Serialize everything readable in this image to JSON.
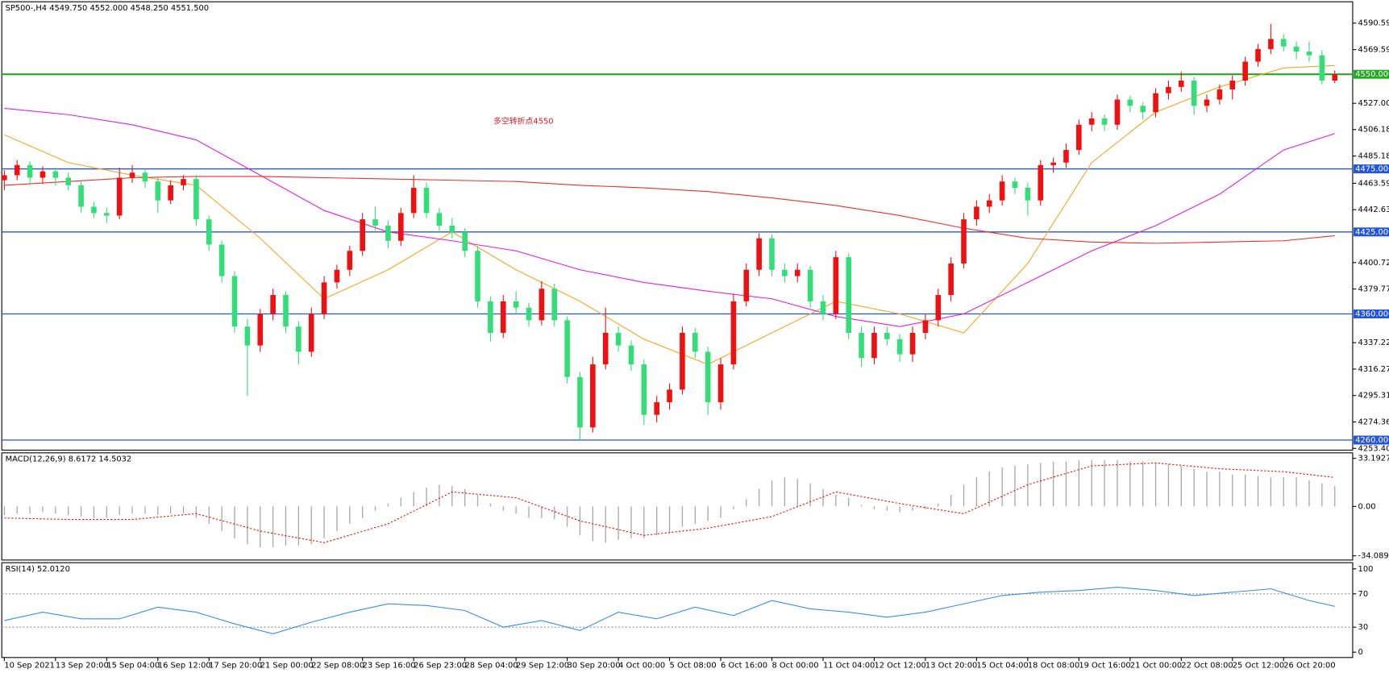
{
  "chart_data": [
    {
      "type": "candlestick",
      "title": "SP500-,H4  4549.750 4552.000 4548.250 4551.500",
      "annotation": "多空转折点4550",
      "annotation_color": "#e0141e",
      "up_color": "#f01010",
      "down_color": "#33dd77",
      "xlim": [
        -0.2,
        105.4
      ],
      "ylim": [
        4252,
        4607.5
      ],
      "yticks": [
        {
          "value": 4590.59,
          "label": "4590.590"
        },
        {
          "value": 4569.59,
          "label": "4569.590"
        },
        {
          "value": 4527,
          "label": "4527.000"
        },
        {
          "value": 4506.18,
          "label": "4506.180"
        },
        {
          "value": 4485.18,
          "label": "4485.180"
        },
        {
          "value": 4463.59,
          "label": "4463.590"
        },
        {
          "value": 4442.635,
          "label": "4442.635"
        },
        {
          "value": 4400.725,
          "label": "4400.725"
        },
        {
          "value": 4379.77,
          "label": "4379.770"
        },
        {
          "value": 4337.225,
          "label": "4337.225"
        },
        {
          "value": 4316.27,
          "label": "4316.270"
        },
        {
          "value": 4295.315,
          "label": "4295.315"
        },
        {
          "value": 4274.36,
          "label": "4274.360"
        },
        {
          "value": 4253.405,
          "label": "4253.405"
        }
      ],
      "levels": [
        {
          "value": 4550,
          "label": "4550.000",
          "color": "#22aa22"
        },
        {
          "value": 4475,
          "label": "4475.000",
          "color": "#2255dd"
        },
        {
          "value": 4425,
          "label": "4425.000",
          "color": "#2255dd"
        },
        {
          "value": 4360,
          "label": "4360.000",
          "color": "#2255dd"
        },
        {
          "value": 4260,
          "label": "4260.000",
          "color": "#2255dd"
        }
      ],
      "lines": [
        {
          "color": "#f5a623",
          "x": [
            0,
            5,
            10,
            15,
            20,
            25,
            30,
            35,
            40,
            45,
            50,
            55,
            60,
            65,
            70,
            75,
            80,
            85,
            90,
            95,
            100,
            104
          ],
          "values": [
            4502,
            4480,
            4470,
            4462,
            4420,
            4372,
            4395,
            4425,
            4395,
            4370,
            4340,
            4320,
            4345,
            4370,
            4360,
            4345,
            4400,
            4480,
            4520,
            4540,
            4555,
            4557
          ]
        },
        {
          "color": "#e020e0",
          "x": [
            0,
            5,
            10,
            15,
            20,
            25,
            30,
            35,
            40,
            45,
            50,
            55,
            60,
            65,
            70,
            75,
            80,
            85,
            90,
            95,
            100,
            104
          ],
          "values": [
            4523,
            4518,
            4510,
            4498,
            4470,
            4442,
            4425,
            4418,
            4410,
            4395,
            4385,
            4378,
            4372,
            4358,
            4350,
            4360,
            4385,
            4410,
            4430,
            4455,
            4490,
            4503
          ]
        },
        {
          "color": "#e8302a",
          "x": [
            0,
            5,
            10,
            15,
            20,
            25,
            30,
            35,
            40,
            45,
            50,
            55,
            60,
            65,
            70,
            75,
            80,
            85,
            90,
            95,
            100,
            104
          ],
          "values": [
            4462,
            4465,
            4468,
            4469,
            4469,
            4468,
            4467,
            4466,
            4465,
            4462,
            4460,
            4457,
            4452,
            4446,
            4438,
            4428,
            4420,
            4417,
            4416,
            4417,
            4418,
            4422
          ]
        }
      ],
      "candles": [
        [
          4466,
          4474,
          4458,
          4470
        ],
        [
          4470,
          4482,
          4466,
          4478
        ],
        [
          4478,
          4481,
          4462,
          4468
        ],
        [
          4468,
          4477,
          4463,
          4473
        ],
        [
          4473,
          4476,
          4462,
          4468
        ],
        [
          4468,
          4472,
          4458,
          4462
        ],
        [
          4462,
          4465,
          4440,
          4445
        ],
        [
          4445,
          4449,
          4436,
          4440
        ],
        [
          4440,
          4444,
          4432,
          4438
        ],
        [
          4438,
          4476,
          4435,
          4468
        ],
        [
          4468,
          4478,
          4464,
          4472
        ],
        [
          4472,
          4475,
          4460,
          4465
        ],
        [
          4465,
          4468,
          4440,
          4450
        ],
        [
          4450,
          4466,
          4447,
          4462
        ],
        [
          4462,
          4470,
          4458,
          4467
        ],
        [
          4467,
          4470,
          4430,
          4435
        ],
        [
          4435,
          4438,
          4410,
          4415
        ],
        [
          4415,
          4418,
          4385,
          4390
        ],
        [
          4390,
          4394,
          4345,
          4350
        ],
        [
          4350,
          4356,
          4295,
          4335
        ],
        [
          4335,
          4364,
          4330,
          4360
        ],
        [
          4360,
          4380,
          4355,
          4375
        ],
        [
          4375,
          4378,
          4345,
          4350
        ],
        [
          4350,
          4354,
          4320,
          4330
        ],
        [
          4330,
          4365,
          4326,
          4360
        ],
        [
          4360,
          4390,
          4356,
          4385
        ],
        [
          4385,
          4399,
          4380,
          4395
        ],
        [
          4395,
          4414,
          4390,
          4410
        ],
        [
          4410,
          4440,
          4406,
          4435
        ],
        [
          4435,
          4445,
          4426,
          4430
        ],
        [
          4430,
          4434,
          4412,
          4418
        ],
        [
          4418,
          4444,
          4414,
          4440
        ],
        [
          4440,
          4470,
          4436,
          4460
        ],
        [
          4460,
          4464,
          4436,
          4440
        ],
        [
          4440,
          4444,
          4426,
          4430
        ],
        [
          4430,
          4436,
          4420,
          4425
        ],
        [
          4425,
          4428,
          4405,
          4410
        ],
        [
          4410,
          4414,
          4365,
          4370
        ],
        [
          4370,
          4374,
          4338,
          4345
        ],
        [
          4345,
          4375,
          4341,
          4370
        ],
        [
          4370,
          4378,
          4360,
          4365
        ],
        [
          4365,
          4369,
          4350,
          4355
        ],
        [
          4355,
          4386,
          4351,
          4380
        ],
        [
          4380,
          4384,
          4350,
          4355
        ],
        [
          4355,
          4358,
          4305,
          4310
        ],
        [
          4310,
          4314,
          4260,
          4270
        ],
        [
          4270,
          4326,
          4266,
          4320
        ],
        [
          4320,
          4365,
          4316,
          4345
        ],
        [
          4345,
          4350,
          4330,
          4335
        ],
        [
          4335,
          4339,
          4315,
          4320
        ],
        [
          4320,
          4324,
          4272,
          4280
        ],
        [
          4280,
          4295,
          4274,
          4290
        ],
        [
          4290,
          4305,
          4284,
          4300
        ],
        [
          4300,
          4350,
          4296,
          4345
        ],
        [
          4345,
          4349,
          4325,
          4330
        ],
        [
          4330,
          4334,
          4280,
          4290
        ],
        [
          4290,
          4325,
          4284,
          4320
        ],
        [
          4320,
          4376,
          4316,
          4370
        ],
        [
          4370,
          4400,
          4366,
          4395
        ],
        [
          4395,
          4424,
          4390,
          4420
        ],
        [
          4420,
          4423,
          4390,
          4395
        ],
        [
          4395,
          4400,
          4385,
          4390
        ],
        [
          4390,
          4400,
          4385,
          4395
        ],
        [
          4395,
          4398,
          4365,
          4370
        ],
        [
          4370,
          4375,
          4355,
          4360
        ],
        [
          4360,
          4410,
          4356,
          4405
        ],
        [
          4405,
          4408,
          4340,
          4345
        ],
        [
          4345,
          4350,
          4318,
          4325
        ],
        [
          4325,
          4350,
          4320,
          4345
        ],
        [
          4345,
          4350,
          4335,
          4340
        ],
        [
          4340,
          4344,
          4322,
          4328
        ],
        [
          4328,
          4350,
          4322,
          4345
        ],
        [
          4345,
          4360,
          4340,
          4355
        ],
        [
          4355,
          4380,
          4350,
          4375
        ],
        [
          4375,
          4405,
          4370,
          4400
        ],
        [
          4400,
          4440,
          4396,
          4435
        ],
        [
          4435,
          4450,
          4430,
          4445
        ],
        [
          4445,
          4455,
          4440,
          4450
        ],
        [
          4450,
          4470,
          4446,
          4465
        ],
        [
          4465,
          4468,
          4455,
          4460
        ],
        [
          4460,
          4464,
          4438,
          4450
        ],
        [
          4450,
          4482,
          4446,
          4478
        ],
        [
          4478,
          4484,
          4472,
          4480
        ],
        [
          4480,
          4495,
          4476,
          4490
        ],
        [
          4490,
          4514,
          4486,
          4510
        ],
        [
          4510,
          4520,
          4505,
          4515
        ],
        [
          4515,
          4518,
          4505,
          4510
        ],
        [
          4510,
          4534,
          4506,
          4530
        ],
        [
          4530,
          4533,
          4520,
          4525
        ],
        [
          4525,
          4528,
          4514,
          4520
        ],
        [
          4520,
          4539,
          4516,
          4535
        ],
        [
          4535,
          4545,
          4530,
          4540
        ],
        [
          4540,
          4552,
          4536,
          4545
        ],
        [
          4545,
          4548,
          4518,
          4525
        ],
        [
          4525,
          4534,
          4520,
          4530
        ],
        [
          4530,
          4542,
          4526,
          4538
        ],
        [
          4538,
          4549,
          4530,
          4545
        ],
        [
          4545,
          4564,
          4541,
          4560
        ],
        [
          4560,
          4574,
          4556,
          4570
        ],
        [
          4570,
          4590,
          4566,
          4578
        ],
        [
          4578,
          4582,
          4568,
          4572
        ],
        [
          4572,
          4576,
          4562,
          4568
        ],
        [
          4568,
          4576,
          4560,
          4565
        ],
        [
          4565,
          4569,
          4542,
          4545
        ],
        [
          4545,
          4553,
          4543,
          4550
        ]
      ]
    },
    {
      "type": "macd",
      "title": "MACD(12,26,9) 8.6172 14.5032",
      "xlim": [
        -0.2,
        105.4
      ],
      "ylim": [
        -37,
        37
      ],
      "yticks": [
        33.1927,
        {
          "value": 0,
          "label": "0.00"
        },
        -34.0891
      ],
      "series": [
        {
          "type": "bar",
          "color": "#a8a8a8",
          "values": [
            -6,
            -5,
            -5,
            -4,
            -5,
            -6,
            -7,
            -8,
            -8,
            -6,
            -5,
            -5,
            -6,
            -5,
            -5,
            -8,
            -12,
            -17,
            -22,
            -26,
            -28,
            -28,
            -27,
            -27,
            -26,
            -22,
            -17,
            -12,
            -8,
            -3,
            2,
            6,
            10,
            13,
            15,
            14,
            12,
            8,
            2,
            -3,
            -5,
            -8,
            -8,
            -9,
            -14,
            -20,
            -24,
            -25,
            -23,
            -22,
            -22,
            -20,
            -18,
            -14,
            -12,
            -10,
            -8,
            -2,
            5,
            12,
            18,
            20,
            19,
            16,
            12,
            8,
            6,
            1,
            -2,
            -3,
            -4,
            -3,
            -2,
            2,
            8,
            15,
            20,
            24,
            27,
            28,
            29,
            30,
            31,
            31,
            32,
            32,
            32,
            32,
            31,
            31,
            30,
            29,
            28,
            26,
            24,
            24,
            22,
            22,
            21,
            20,
            20,
            20,
            18,
            16,
            14
          ]
        },
        {
          "type": "line",
          "color": "#e01010",
          "dashed": true,
          "x": [
            0,
            5,
            10,
            15,
            20,
            25,
            30,
            35,
            40,
            45,
            50,
            55,
            60,
            65,
            70,
            75,
            80,
            85,
            90,
            95,
            100,
            104
          ],
          "values": [
            -8,
            -9,
            -9,
            -5,
            -17,
            -25,
            -12,
            10,
            6,
            -10,
            -20,
            -15,
            -7,
            10,
            2,
            -5,
            15,
            28,
            30,
            26,
            24,
            20
          ]
        }
      ]
    },
    {
      "type": "line",
      "title": "RSI(14) 52.0120",
      "color": "#3a8ee6",
      "xlim": [
        -0.2,
        105.4
      ],
      "ylim": [
        -6.4,
        107.4
      ],
      "yticks": [
        100,
        70,
        30,
        0
      ],
      "levels": [
        70,
        30
      ],
      "x": [
        0,
        3,
        6,
        9,
        12,
        15,
        18,
        21,
        24,
        27,
        30,
        33,
        36,
        39,
        42,
        45,
        48,
        51,
        54,
        57,
        60,
        63,
        66,
        69,
        72,
        75,
        78,
        81,
        84,
        87,
        90,
        93,
        96,
        99,
        102,
        104
      ],
      "values": [
        38,
        48,
        40,
        40,
        54,
        48,
        34,
        22,
        36,
        48,
        58,
        56,
        50,
        30,
        38,
        26,
        48,
        40,
        54,
        44,
        62,
        52,
        48,
        42,
        48,
        58,
        68,
        72,
        74,
        78,
        74,
        68,
        72,
        76,
        62,
        55
      ],
      "xticks": [
        {
          "value": 0,
          "label": "10 Sep 2021"
        },
        {
          "value": 4,
          "label": "13 Sep 20:00"
        },
        {
          "value": 8,
          "label": "15 Sep 04:00"
        },
        {
          "value": 12,
          "label": "16 Sep 12:00"
        },
        {
          "value": 16,
          "label": "17 Sep 20:00"
        },
        {
          "value": 20,
          "label": "21 Sep 00:00"
        },
        {
          "value": 24,
          "label": "22 Sep 08:00"
        },
        {
          "value": 28,
          "label": "23 Sep 16:00"
        },
        {
          "value": 32,
          "label": "26 Sep 23:00"
        },
        {
          "value": 36,
          "label": "28 Sep 04:00"
        },
        {
          "value": 40,
          "label": "29 Sep 12:00"
        },
        {
          "value": 44,
          "label": "30 Sep 20:00"
        },
        {
          "value": 48,
          "label": "4 Oct 00:00"
        },
        {
          "value": 52,
          "label": "5 Oct 08:00"
        },
        {
          "value": 56,
          "label": "6 Oct 16:00"
        },
        {
          "value": 60,
          "label": "8 Oct 00:00"
        },
        {
          "value": 64,
          "label": "11 Oct 04:00"
        },
        {
          "value": 68,
          "label": "12 Oct 12:00"
        },
        {
          "value": 72,
          "label": "13 Oct 20:00"
        },
        {
          "value": 76,
          "label": "15 Oct 04:00"
        },
        {
          "value": 80,
          "label": "18 Oct 08:00"
        },
        {
          "value": 84,
          "label": "19 Oct 16:00"
        },
        {
          "value": 88,
          "label": "21 Oct 00:00"
        },
        {
          "value": 92,
          "label": "22 Oct 08:00"
        },
        {
          "value": 96,
          "label": "25 Oct 12:00"
        },
        {
          "value": 100,
          "label": "26 Oct 20:00"
        }
      ]
    }
  ]
}
